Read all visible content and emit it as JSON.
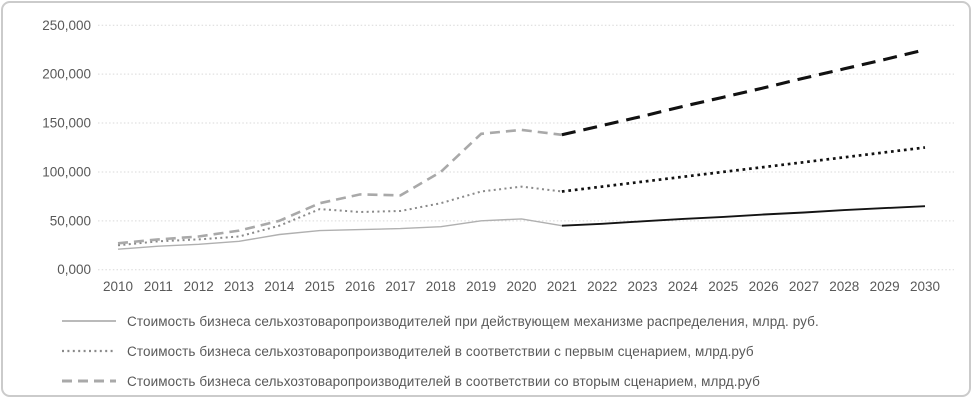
{
  "frame": {
    "background": "#ffffff",
    "border_color": "#cbcbcb"
  },
  "axis": {
    "text_color": "#595959",
    "gridline_color": "#d9d9d9"
  },
  "chart_data": {
    "type": "line",
    "title": "",
    "xlabel": "",
    "ylabel": "",
    "x": [
      2010,
      2011,
      2012,
      2013,
      2014,
      2015,
      2016,
      2017,
      2018,
      2019,
      2020,
      2021,
      2022,
      2023,
      2024,
      2025,
      2026,
      2027,
      2028,
      2029,
      2030
    ],
    "ylim": [
      0,
      250
    ],
    "ytick_step": 50,
    "ytick_labels": [
      "0,000",
      "50,000",
      "100,000",
      "150,000",
      "200,000",
      "250,000"
    ],
    "grid": "horizontal-dotted",
    "legend_position": "bottom-left",
    "forecast_start_year": 2021,
    "series": [
      {
        "name": "Стоимость бизнеса сельхозтоваропроизводителей при действующем механизме распределения, млрд. руб.",
        "style": "solid",
        "color_history": "#b0b0b0",
        "color_forecast": "#141414",
        "values": [
          21,
          24,
          26,
          29,
          36,
          40,
          41,
          42,
          44,
          50,
          52,
          45,
          47,
          49.5,
          52,
          54,
          56.5,
          58.5,
          61,
          63,
          65
        ]
      },
      {
        "name": "Стоимость бизнеса сельхозтоваропроизводителей в соответствии с первым сценарием, млрд.руб",
        "style": "dotted",
        "color_history": "#8a8a8a",
        "color_forecast": "#111111",
        "values": [
          25,
          29,
          31,
          34,
          45,
          62,
          59,
          60,
          68,
          80,
          85,
          80,
          85,
          90,
          95,
          100,
          105,
          110,
          115,
          120,
          125
        ]
      },
      {
        "name": "Стоимость бизнеса сельхозтоваропроизводителей в соответствии со вторым сценарием, млрд.руб",
        "style": "dashed",
        "color_history": "#a9a9a9",
        "color_forecast": "#111111",
        "values": [
          27,
          31,
          34,
          40,
          50,
          68,
          77,
          76,
          100,
          139,
          143,
          138,
          147.5,
          157,
          167,
          176.5,
          186,
          196,
          205.5,
          215,
          225
        ]
      }
    ]
  },
  "legend": {
    "items": [
      {
        "label": "Стоимость бизнеса сельхозтоваропроизводителей при действующем механизме распределения, млрд. руб."
      },
      {
        "label": "Стоимость бизнеса сельхозтоваропроизводителей в соответствии с первым сценарием, млрд.руб"
      },
      {
        "label": "Стоимость бизнеса сельхозтоваропроизводителей в соответствии со вторым сценарием, млрд.руб"
      }
    ]
  }
}
